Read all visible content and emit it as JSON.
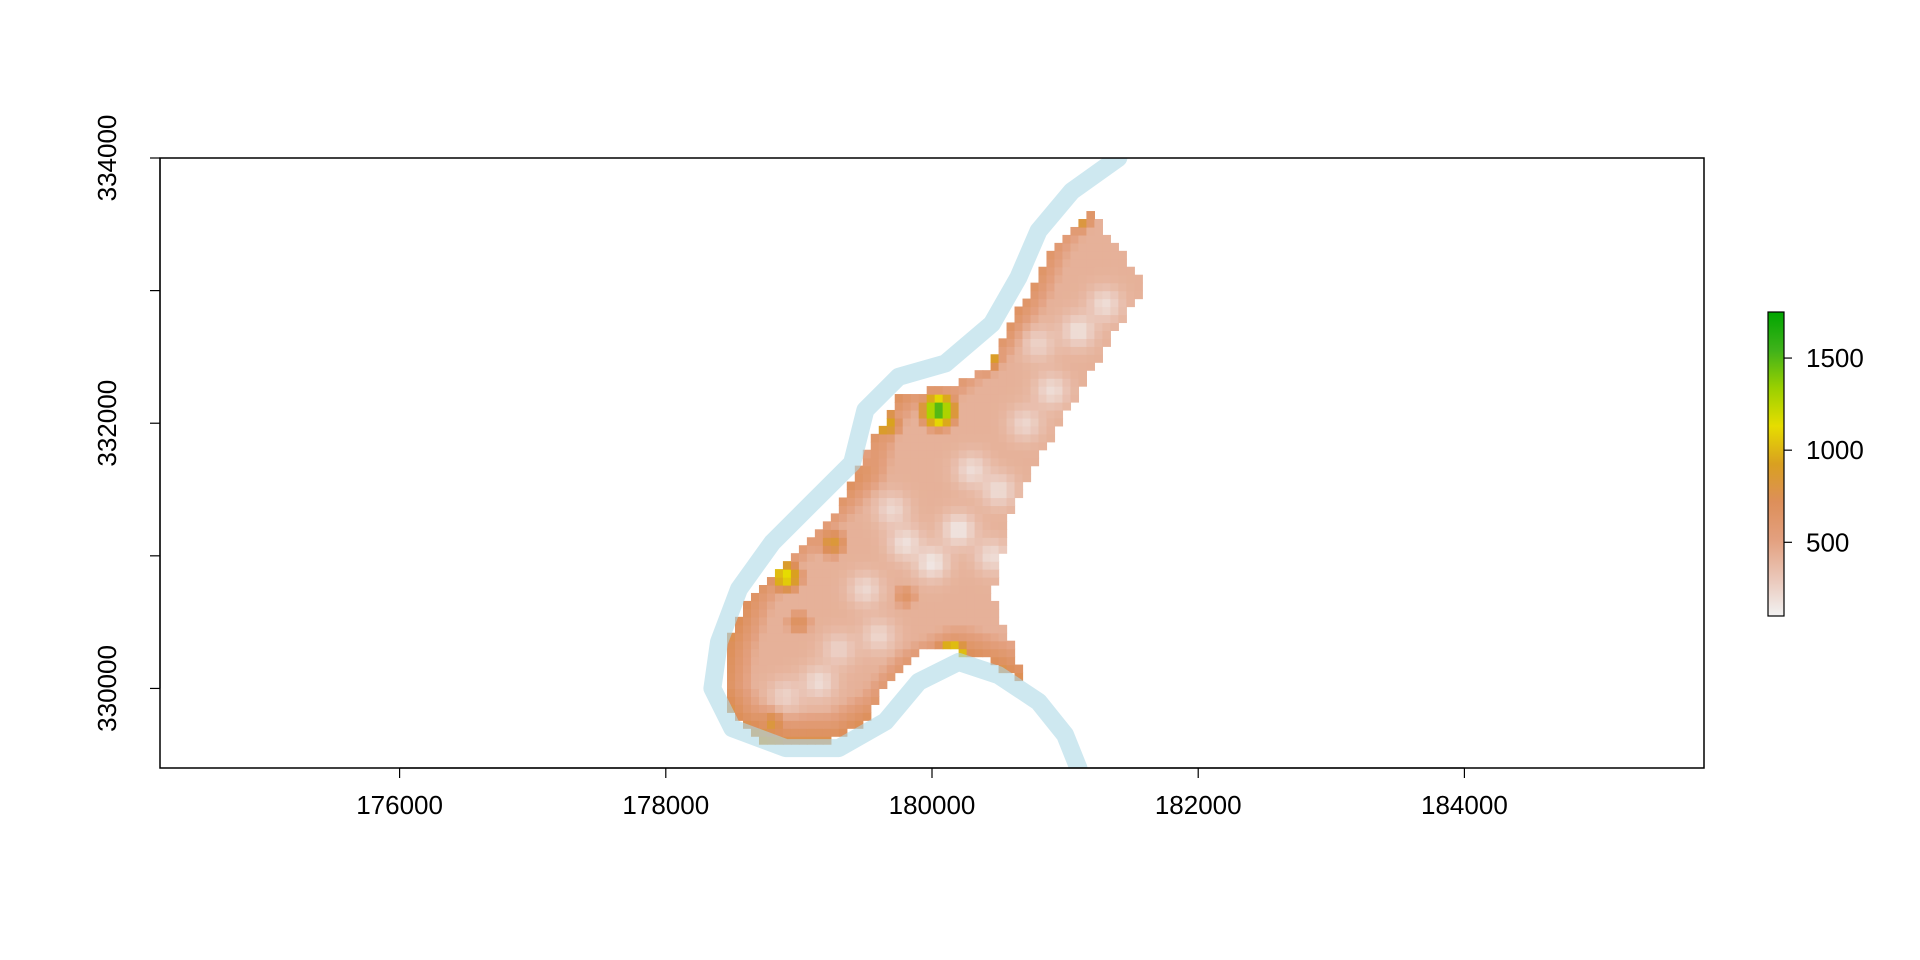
{
  "chart_data": {
    "type": "heatmap",
    "title": "",
    "xlabel": "",
    "ylabel": "",
    "xlim": [
      174200,
      185800
    ],
    "ylim": [
      329400,
      334000
    ],
    "x_ticks": [
      176000,
      178000,
      180000,
      182000,
      184000
    ],
    "x_tick_labels": [
      "176000",
      "178000",
      "180000",
      "182000",
      "184000"
    ],
    "y_ticks": [
      330000,
      331000,
      332000,
      333000,
      334000
    ],
    "y_tick_labels": [
      "330000",
      "",
      "332000",
      "",
      "334000"
    ],
    "legend": {
      "placement": "right",
      "range": [
        100,
        1750
      ],
      "ticks": [
        500,
        1000,
        1500
      ],
      "tick_labels": [
        "500",
        "1000",
        "1500"
      ],
      "colors": [
        "#f2f2f2",
        "#eac6b8",
        "#e3a07f",
        "#dd8f5a",
        "#d9a020",
        "#e6dd00",
        "#9ad000",
        "#3fb21a",
        "#00a600"
      ]
    },
    "river_color": "#add8e6",
    "river": [
      [
        181400,
        334000
      ],
      [
        181050,
        333750
      ],
      [
        180800,
        333450
      ],
      [
        180650,
        333100
      ],
      [
        180450,
        332750
      ],
      [
        180100,
        332450
      ],
      [
        179750,
        332350
      ],
      [
        179500,
        332100
      ],
      [
        179400,
        331700
      ],
      [
        179100,
        331400
      ],
      [
        178800,
        331100
      ],
      [
        178550,
        330750
      ],
      [
        178400,
        330350
      ],
      [
        178350,
        330000
      ],
      [
        178500,
        329700
      ],
      [
        178900,
        329550
      ],
      [
        179300,
        329550
      ],
      [
        179650,
        329750
      ],
      [
        179900,
        330050
      ],
      [
        180200,
        330200
      ],
      [
        180500,
        330100
      ],
      [
        180800,
        329900
      ],
      [
        181000,
        329650
      ],
      [
        181100,
        329400
      ]
    ],
    "region": [
      [
        178450,
        330300
      ],
      [
        178600,
        330650
      ],
      [
        178900,
        330950
      ],
      [
        179300,
        331350
      ],
      [
        179500,
        331800
      ],
      [
        179750,
        332200
      ],
      [
        180200,
        332300
      ],
      [
        180450,
        332450
      ],
      [
        180650,
        332850
      ],
      [
        180900,
        333300
      ],
      [
        181200,
        333600
      ],
      [
        181600,
        333050
      ],
      [
        181200,
        332400
      ],
      [
        180900,
        331900
      ],
      [
        180600,
        331350
      ],
      [
        180450,
        330700
      ],
      [
        180700,
        330050
      ],
      [
        180350,
        330250
      ],
      [
        179950,
        330300
      ],
      [
        179650,
        330050
      ],
      [
        179500,
        329750
      ],
      [
        179100,
        329550
      ],
      [
        178700,
        329600
      ],
      [
        178450,
        329850
      ]
    ],
    "hotspots": [
      {
        "x": 180050,
        "y": 332100,
        "value": 1550
      },
      {
        "x": 180600,
        "y": 333350,
        "value": 1150
      },
      {
        "x": 181100,
        "y": 333550,
        "value": 900
      },
      {
        "x": 180400,
        "y": 332500,
        "value": 1100
      },
      {
        "x": 179650,
        "y": 332000,
        "value": 1000
      },
      {
        "x": 178900,
        "y": 330850,
        "value": 1150
      },
      {
        "x": 179250,
        "y": 331100,
        "value": 850
      },
      {
        "x": 180150,
        "y": 330250,
        "value": 1350
      },
      {
        "x": 180700,
        "y": 330100,
        "value": 750
      },
      {
        "x": 178800,
        "y": 329750,
        "value": 850
      },
      {
        "x": 179200,
        "y": 329550,
        "value": 800
      },
      {
        "x": 179600,
        "y": 329700,
        "value": 700
      },
      {
        "x": 179800,
        "y": 330700,
        "value": 650
      },
      {
        "x": 179000,
        "y": 330500,
        "value": 700
      }
    ],
    "lowspots": [
      {
        "x": 180200,
        "y": 331200,
        "value": 150
      },
      {
        "x": 180000,
        "y": 330950,
        "value": 150
      },
      {
        "x": 179800,
        "y": 331100,
        "value": 180
      },
      {
        "x": 180500,
        "y": 331500,
        "value": 200
      },
      {
        "x": 180300,
        "y": 331650,
        "value": 200
      },
      {
        "x": 179700,
        "y": 331350,
        "value": 220
      },
      {
        "x": 180900,
        "y": 332250,
        "value": 200
      },
      {
        "x": 181100,
        "y": 332700,
        "value": 180
      },
      {
        "x": 181300,
        "y": 332900,
        "value": 200
      },
      {
        "x": 180800,
        "y": 332600,
        "value": 250
      },
      {
        "x": 179500,
        "y": 330750,
        "value": 220
      },
      {
        "x": 179150,
        "y": 330050,
        "value": 200
      },
      {
        "x": 178900,
        "y": 329950,
        "value": 250
      },
      {
        "x": 179600,
        "y": 330400,
        "value": 230
      },
      {
        "x": 180450,
        "y": 331000,
        "value": 200
      },
      {
        "x": 179400,
        "y": 331800,
        "value": 300
      },
      {
        "x": 180700,
        "y": 332000,
        "value": 230
      },
      {
        "x": 179300,
        "y": 330300,
        "value": 250
      }
    ]
  }
}
